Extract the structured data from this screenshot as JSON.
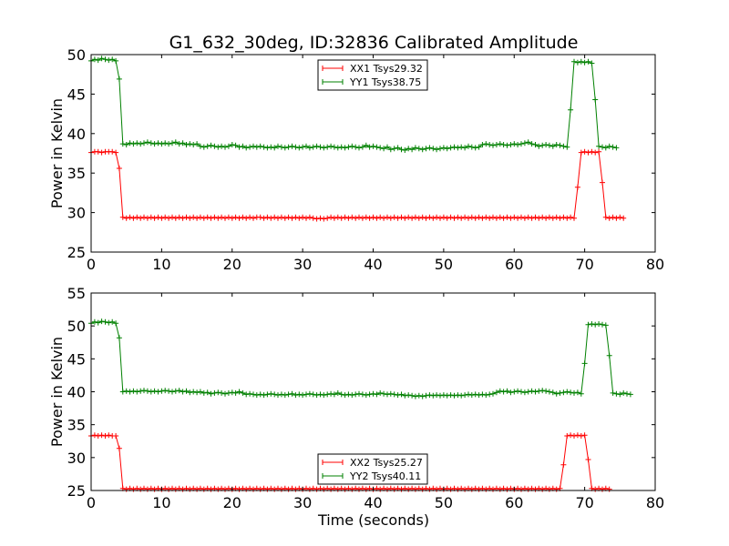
{
  "chart_data": [
    {
      "type": "line",
      "title": "G1_632_30deg, ID:32836 Calibrated Amplitude",
      "xlabel": "",
      "ylabel": "Power in Kelvin",
      "xlim": [
        0,
        80
      ],
      "ylim": [
        25,
        50
      ],
      "xticks": [
        "0",
        "10",
        "20",
        "30",
        "40",
        "50",
        "60",
        "70",
        "80"
      ],
      "yticks": [
        "25",
        "30",
        "35",
        "40",
        "45",
        "50"
      ],
      "grid": false,
      "legend_position": "upper-center",
      "x_start": 0,
      "x_step": 0.5,
      "series": [
        {
          "name": "XX1 Tsys29.32",
          "color": "#ff0000",
          "values": [
            37.6,
            37.7,
            37.7,
            37.6,
            37.7,
            37.7,
            37.7,
            37.6,
            35.6,
            29.4,
            29.3,
            29.4,
            29.3,
            29.4,
            29.3,
            29.4,
            29.3,
            29.4,
            29.3,
            29.4,
            29.3,
            29.4,
            29.3,
            29.4,
            29.3,
            29.4,
            29.3,
            29.4,
            29.3,
            29.4,
            29.3,
            29.4,
            29.3,
            29.4,
            29.3,
            29.4,
            29.3,
            29.4,
            29.3,
            29.4,
            29.3,
            29.4,
            29.3,
            29.4,
            29.3,
            29.4,
            29.3,
            29.4,
            29.4,
            29.3,
            29.4,
            29.3,
            29.4,
            29.3,
            29.4,
            29.3,
            29.4,
            29.3,
            29.4,
            29.3,
            29.4,
            29.3,
            29.4,
            29.3,
            29.2,
            29.3,
            29.2,
            29.3,
            29.4,
            29.3,
            29.4,
            29.3,
            29.4,
            29.3,
            29.4,
            29.3,
            29.4,
            29.3,
            29.4,
            29.3,
            29.4,
            29.3,
            29.4,
            29.3,
            29.4,
            29.3,
            29.4,
            29.3,
            29.4,
            29.3,
            29.4,
            29.3,
            29.4,
            29.3,
            29.4,
            29.3,
            29.4,
            29.3,
            29.4,
            29.3,
            29.4,
            29.3,
            29.4,
            29.3,
            29.4,
            29.3,
            29.4,
            29.3,
            29.4,
            29.3,
            29.4,
            29.3,
            29.4,
            29.3,
            29.4,
            29.3,
            29.4,
            29.3,
            29.4,
            29.3,
            29.4,
            29.3,
            29.4,
            29.3,
            29.4,
            29.3,
            29.4,
            29.3,
            29.4,
            29.3,
            29.4,
            29.3,
            29.4,
            29.3,
            29.4,
            29.3,
            29.4,
            29.3,
            33.2,
            37.6,
            37.7,
            37.6,
            37.7,
            37.6,
            37.7,
            33.8,
            29.4,
            29.3,
            29.4,
            29.3,
            29.4,
            29.3
          ]
        },
        {
          "name": "YY1 Tsys38.75",
          "color": "#008000",
          "values": [
            49.2,
            49.4,
            49.3,
            49.5,
            49.4,
            49.3,
            49.4,
            49.2,
            46.9,
            38.7,
            38.6,
            38.8,
            38.7,
            38.8,
            38.7,
            38.8,
            38.9,
            38.8,
            38.7,
            38.8,
            38.7,
            38.8,
            38.7,
            38.8,
            38.9,
            38.7,
            38.8,
            38.6,
            38.7,
            38.6,
            38.7,
            38.4,
            38.3,
            38.4,
            38.5,
            38.4,
            38.3,
            38.4,
            38.3,
            38.4,
            38.6,
            38.5,
            38.3,
            38.4,
            38.2,
            38.3,
            38.4,
            38.3,
            38.4,
            38.3,
            38.2,
            38.3,
            38.2,
            38.4,
            38.3,
            38.2,
            38.3,
            38.4,
            38.3,
            38.2,
            38.3,
            38.4,
            38.2,
            38.3,
            38.4,
            38.3,
            38.2,
            38.3,
            38.4,
            38.3,
            38.2,
            38.3,
            38.2,
            38.3,
            38.4,
            38.3,
            38.2,
            38.3,
            38.5,
            38.3,
            38.4,
            38.3,
            38.2,
            38.1,
            38.3,
            38.0,
            38.1,
            38.2,
            38.0,
            37.9,
            38.1,
            38.0,
            38.2,
            38.1,
            38.0,
            38.1,
            38.2,
            38.1,
            38.0,
            38.1,
            38.2,
            38.1,
            38.2,
            38.3,
            38.2,
            38.3,
            38.2,
            38.4,
            38.3,
            38.2,
            38.3,
            38.6,
            38.7,
            38.6,
            38.5,
            38.6,
            38.7,
            38.6,
            38.5,
            38.6,
            38.7,
            38.6,
            38.7,
            38.8,
            38.9,
            38.7,
            38.6,
            38.4,
            38.5,
            38.6,
            38.5,
            38.4,
            38.6,
            38.5,
            38.4,
            38.3,
            43.0,
            49.1,
            49.0,
            49.1,
            49.0,
            49.1,
            48.9,
            44.3,
            38.4,
            38.3,
            38.2,
            38.4,
            38.3,
            38.2
          ]
        }
      ]
    },
    {
      "type": "line",
      "title": "",
      "xlabel": "Time (seconds)",
      "ylabel": "Power in Kelvin",
      "xlim": [
        0,
        80
      ],
      "ylim": [
        25,
        55
      ],
      "xticks": [
        "0",
        "10",
        "20",
        "30",
        "40",
        "50",
        "60",
        "70",
        "80"
      ],
      "yticks": [
        "25",
        "30",
        "35",
        "40",
        "45",
        "50",
        "55"
      ],
      "grid": false,
      "legend_position": "lower-center",
      "x_start": 0,
      "x_step": 0.5,
      "series": [
        {
          "name": "XX2 Tsys25.27",
          "color": "#ff0000",
          "values": [
            33.3,
            33.4,
            33.3,
            33.4,
            33.3,
            33.4,
            33.3,
            33.3,
            31.4,
            25.3,
            25.2,
            25.3,
            25.2,
            25.3,
            25.2,
            25.3,
            25.2,
            25.3,
            25.2,
            25.3,
            25.2,
            25.3,
            25.2,
            25.3,
            25.2,
            25.3,
            25.2,
            25.3,
            25.2,
            25.3,
            25.2,
            25.3,
            25.2,
            25.3,
            25.2,
            25.3,
            25.2,
            25.3,
            25.2,
            25.3,
            25.2,
            25.3,
            25.2,
            25.3,
            25.2,
            25.3,
            25.2,
            25.3,
            25.2,
            25.3,
            25.2,
            25.3,
            25.2,
            25.3,
            25.2,
            25.3,
            25.2,
            25.3,
            25.2,
            25.3,
            25.2,
            25.3,
            25.2,
            25.3,
            25.2,
            25.3,
            25.2,
            25.3,
            25.2,
            25.3,
            25.2,
            25.3,
            25.2,
            25.3,
            25.2,
            25.3,
            25.2,
            25.3,
            25.2,
            25.3,
            25.2,
            25.3,
            25.2,
            25.3,
            25.2,
            25.3,
            25.2,
            25.3,
            25.2,
            25.3,
            25.2,
            25.3,
            25.2,
            25.3,
            25.2,
            25.3,
            25.2,
            25.3,
            25.2,
            25.3,
            25.2,
            25.3,
            25.2,
            25.3,
            25.2,
            25.3,
            25.2,
            25.3,
            25.2,
            25.3,
            25.2,
            25.3,
            25.2,
            25.3,
            25.2,
            25.3,
            25.2,
            25.3,
            25.2,
            25.3,
            25.2,
            25.3,
            25.2,
            25.3,
            25.2,
            25.3,
            25.2,
            25.3,
            25.2,
            25.3,
            25.2,
            25.3,
            25.2,
            25.3,
            28.9,
            33.3,
            33.4,
            33.3,
            33.4,
            33.3,
            33.4,
            29.7,
            25.3,
            25.2,
            25.3,
            25.2,
            25.3,
            25.2
          ]
        },
        {
          "name": "YY2 Tsys40.11",
          "color": "#008000",
          "values": [
            50.4,
            50.6,
            50.5,
            50.7,
            50.6,
            50.5,
            50.6,
            50.4,
            48.2,
            40.0,
            40.1,
            40.0,
            40.1,
            40.0,
            40.1,
            40.2,
            40.1,
            40.0,
            40.1,
            40.0,
            40.1,
            40.2,
            40.1,
            40.0,
            40.1,
            40.2,
            40.0,
            40.1,
            39.9,
            40.0,
            39.9,
            40.0,
            39.8,
            39.9,
            39.7,
            39.8,
            39.9,
            39.8,
            39.7,
            39.8,
            39.9,
            39.8,
            40.0,
            39.8,
            39.6,
            39.7,
            39.6,
            39.5,
            39.6,
            39.5,
            39.6,
            39.7,
            39.6,
            39.5,
            39.6,
            39.5,
            39.6,
            39.7,
            39.5,
            39.6,
            39.5,
            39.6,
            39.7,
            39.6,
            39.5,
            39.6,
            39.5,
            39.6,
            39.7,
            39.6,
            39.8,
            39.6,
            39.5,
            39.6,
            39.5,
            39.6,
            39.7,
            39.6,
            39.5,
            39.6,
            39.7,
            39.6,
            39.8,
            39.7,
            39.6,
            39.7,
            39.6,
            39.5,
            39.6,
            39.4,
            39.5,
            39.4,
            39.3,
            39.4,
            39.3,
            39.4,
            39.5,
            39.4,
            39.5,
            39.4,
            39.5,
            39.4,
            39.5,
            39.4,
            39.5,
            39.4,
            39.5,
            39.6,
            39.5,
            39.6,
            39.5,
            39.6,
            39.5,
            39.6,
            39.7,
            39.9,
            40.1,
            40.0,
            40.1,
            39.9,
            40.0,
            40.1,
            40.0,
            39.9,
            40.0,
            40.1,
            40.0,
            40.1,
            40.2,
            40.1,
            40.0,
            39.9,
            39.7,
            39.8,
            39.9,
            40.0,
            39.9,
            39.8,
            39.9,
            39.7,
            44.3,
            50.2,
            50.3,
            50.2,
            50.3,
            50.2,
            50.1,
            45.5,
            39.8,
            39.7,
            39.6,
            39.8,
            39.7,
            39.6
          ]
        }
      ]
    }
  ]
}
